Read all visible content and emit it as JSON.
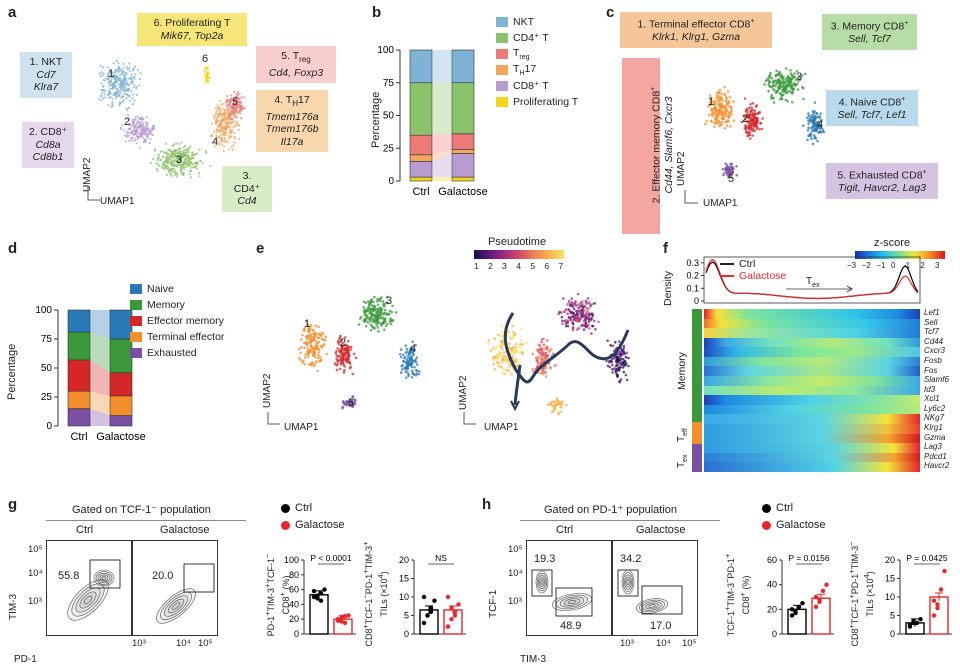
{
  "panels": {
    "a": {
      "letter": "a",
      "clusters": [
        {
          "num": "1",
          "title": "1. NKT",
          "genes": [
            "Cd7",
            "Klra7"
          ]
        },
        {
          "num": "2",
          "title": "2. CD8⁺",
          "genes": [
            "Cd8a",
            "Cd8b1"
          ]
        },
        {
          "num": "3",
          "title": "3. CD4⁺",
          "genes": [
            "Cd4"
          ]
        },
        {
          "num": "4",
          "title": "4. T_H17",
          "genes": [
            "Tmem176a",
            "Tmem176b",
            "Il17a"
          ]
        },
        {
          "num": "5",
          "title": "5. T_reg",
          "genes": [
            "Cd4, Foxp3"
          ]
        },
        {
          "num": "6",
          "title": "6. Proliferating T",
          "genes": [
            "Mik67, Top2a"
          ]
        }
      ],
      "ylabel": "UMAP2",
      "xlabel": "UMAP1"
    },
    "b": {
      "letter": "b",
      "ylabel": "Percentage",
      "yticks": [
        "0",
        "25",
        "50",
        "75",
        "100"
      ],
      "categories": [
        "Ctrl",
        "Galactose"
      ],
      "legend": [
        "NKT",
        "CD4⁺ T",
        "T_reg",
        "T_H17",
        "CD8⁺ T",
        "Proliferating T"
      ]
    },
    "c": {
      "letter": "c",
      "clusters": [
        {
          "num": "1",
          "title": "1. Terminal effector CD8⁺",
          "genes": "Klrk1, Klrg1, Gzma"
        },
        {
          "num": "2",
          "title": "2. Effector memory CD8⁺",
          "genes": "Cd44, Slamf6, Cxcr3"
        },
        {
          "num": "3",
          "title": "3. Memory CD8⁺",
          "genes": "Sell, Tcf7"
        },
        {
          "num": "4",
          "title": "4. Naive CD8⁺",
          "genes": "Sell, Tcf7, Lef1"
        },
        {
          "num": "5",
          "title": "5. Exhausted CD8⁺",
          "genes": "Tigit, Havcr2, Lag3"
        }
      ],
      "ylabel": "UMAP2",
      "xlabel": "UMAP1"
    },
    "d": {
      "letter": "d",
      "ylabel": "Percentage",
      "yticks": [
        "0",
        "25",
        "50",
        "75",
        "100"
      ],
      "categories": [
        "Ctrl",
        "Galactose"
      ],
      "legend": [
        "Naive",
        "Memory",
        "Effector memory",
        "Terminal effector",
        "Exhausted"
      ]
    },
    "e": {
      "letter": "e",
      "colorbar_title": "Pseudotime",
      "colorbar_ticks": [
        "1",
        "2",
        "3",
        "4",
        "5",
        "6",
        "7"
      ],
      "cluster_nums": [
        "1",
        "2",
        "3",
        "4",
        "5"
      ],
      "ylabel": "UMAP2",
      "xlabel": "UMAP1"
    },
    "f": {
      "letter": "f",
      "density_label": "Density",
      "density_ticks": [
        "0",
        "0.1",
        "0.2",
        "0.3"
      ],
      "legend": [
        "Ctrl",
        "Galactose"
      ],
      "tex_label": "T_ex",
      "zscore_title": "z-score",
      "zscore_ticks": [
        "−3",
        "−2",
        "−1",
        "0",
        "1",
        "2",
        "3"
      ],
      "row_groups": [
        "Memory",
        "T_eff",
        "T_ex"
      ],
      "genes": [
        "Lef1",
        "Sell",
        "Tcf7",
        "Cd44",
        "Cxcr3",
        "Fosb",
        "Fos",
        "Slamf6",
        "Id3",
        "Xcl1",
        "Ly6c2",
        "NKg7",
        "Klrg1",
        "Gzma",
        "Lag3",
        "Pdcd1",
        "Havcr2"
      ]
    },
    "g": {
      "letter": "g",
      "gate_title": "Gated on TCF-1⁻ population",
      "conditions": [
        "Ctrl",
        "Galactose"
      ],
      "gate_values": [
        "55.8",
        "20.0"
      ],
      "y_axis": "TIM-3",
      "x_axis": "PD-1",
      "ticks": [
        "0",
        "10³",
        "10⁴",
        "10⁵"
      ],
      "legend": [
        "Ctrl",
        "Galactose"
      ],
      "bar1": {
        "ylabel": "PD-1⁺TIM-3⁺TCF-1⁻ CD8⁺ (%)",
        "yticks": [
          "0",
          "20",
          "40",
          "60",
          "80",
          "100"
        ],
        "pval": "P < 0.0001"
      },
      "bar2": {
        "ylabel": "CD8⁺TCF-1⁻PD-1⁺TIM-3⁺ TILs (×10⁴)",
        "yticks": [
          "0",
          "5",
          "10",
          "15",
          "20"
        ],
        "pval": "NS"
      }
    },
    "h": {
      "letter": "h",
      "gate_title": "Gated on PD-1⁺ population",
      "conditions": [
        "Ctrl",
        "Galactose"
      ],
      "gate_values": {
        "ctrl_top": "19.3",
        "ctrl_bottom": "48.9",
        "gal_top": "34.2",
        "gal_bottom": "17.0"
      },
      "y_axis": "TCF-1",
      "x_axis": "TIM-3",
      "ticks": [
        "0",
        "10³",
        "10⁴",
        "10⁵"
      ],
      "legend": [
        "Ctrl",
        "Galactose"
      ],
      "bar1": {
        "ylabel": "TCF-1⁺TIM-3⁻PD-1⁺ CD8⁺ (%)",
        "yticks": [
          "0",
          "20",
          "40",
          "60"
        ],
        "pval": "P = 0.0156"
      },
      "bar2": {
        "ylabel": "CD8⁺TCF-1⁺PD-1⁺TIM-3⁻ TILs (×10⁴)",
        "yticks": [
          "0",
          "5",
          "10",
          "15",
          "20"
        ],
        "pval": "P = 0.0425"
      }
    }
  },
  "colors": {
    "nkt": "#7fb3d5",
    "cd4": "#8cc26b",
    "treg": "#ec7a78",
    "th17": "#f2a65e",
    "cd8": "#b89bd1",
    "prolif": "#f2d41a",
    "naive": "#2a7ab8",
    "memory": "#3a9a3a",
    "effmem": "#d62728",
    "termeff": "#f28e2b",
    "exhausted": "#7b4fa3",
    "ctrl": "#000000",
    "galactose": "#e8262b"
  },
  "chart_data": [
    {
      "type": "bar",
      "title": "b",
      "categories": [
        "Ctrl",
        "Galactose"
      ],
      "ylim": [
        0,
        100
      ],
      "stacked": true,
      "series": [
        {
          "name": "Proliferating T",
          "values": [
            3,
            3
          ]
        },
        {
          "name": "CD8⁺ T",
          "values": [
            12,
            18
          ]
        },
        {
          "name": "T_H17",
          "values": [
            5,
            3
          ]
        },
        {
          "name": "T_reg",
          "values": [
            15,
            12
          ]
        },
        {
          "name": "CD4⁺ T",
          "values": [
            40,
            39
          ]
        },
        {
          "name": "NKT",
          "values": [
            25,
            25
          ]
        }
      ]
    },
    {
      "type": "bar",
      "title": "d",
      "categories": [
        "Ctrl",
        "Galactose"
      ],
      "ylim": [
        0,
        100
      ],
      "stacked": true,
      "series": [
        {
          "name": "Exhausted",
          "values": [
            15,
            9
          ]
        },
        {
          "name": "Terminal effector",
          "values": [
            15,
            17
          ]
        },
        {
          "name": "Effector memory",
          "values": [
            27,
            20
          ]
        },
        {
          "name": "Memory",
          "values": [
            24,
            29
          ]
        },
        {
          "name": "Naive",
          "values": [
            19,
            25
          ]
        }
      ]
    },
    {
      "type": "bar",
      "title": "g-left",
      "categories": [
        "Ctrl",
        "Galactose"
      ],
      "ylim": [
        0,
        100
      ],
      "values": [
        53,
        20
      ],
      "points": [
        [
          50,
          48,
          55,
          60,
          58,
          52,
          45
        ],
        [
          18,
          22,
          15,
          25,
          20,
          17,
          24
        ]
      ]
    },
    {
      "type": "bar",
      "title": "g-right",
      "categories": [
        "Ctrl",
        "Galactose"
      ],
      "ylim": [
        0,
        20
      ],
      "values": [
        6.5,
        6.5
      ],
      "points": [
        [
          3,
          5,
          7,
          9,
          10,
          5,
          6
        ],
        [
          2,
          4,
          6,
          8,
          10,
          7,
          5
        ]
      ]
    },
    {
      "type": "bar",
      "title": "h-left",
      "categories": [
        "Ctrl",
        "Galactose"
      ],
      "ylim": [
        0,
        60
      ],
      "values": [
        20,
        29
      ],
      "points": [
        [
          15,
          18,
          22,
          25,
          20,
          17
        ],
        [
          22,
          28,
          35,
          40,
          30,
          26
        ]
      ]
    },
    {
      "type": "bar",
      "title": "h-right",
      "categories": [
        "Ctrl",
        "Galactose"
      ],
      "ylim": [
        0,
        20
      ],
      "values": [
        3,
        10
      ],
      "points": [
        [
          2,
          3,
          3,
          4,
          2.5,
          3.5
        ],
        [
          5,
          8,
          12,
          17,
          9,
          7
        ]
      ]
    }
  ]
}
